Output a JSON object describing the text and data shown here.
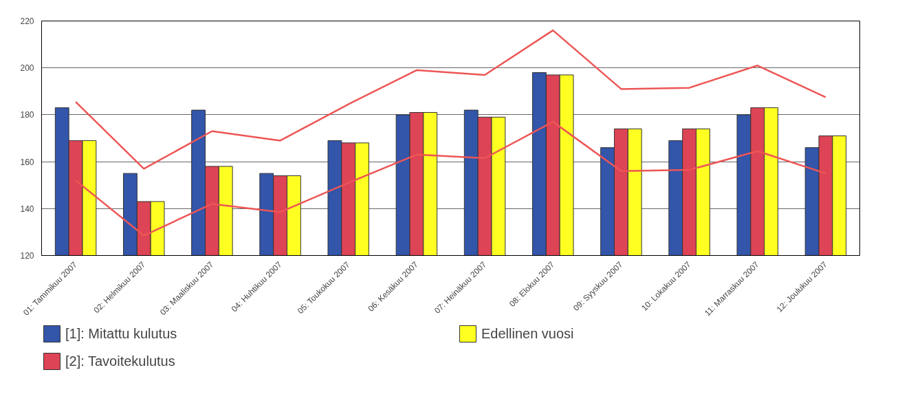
{
  "chart_data": {
    "type": "bar",
    "categories": [
      "01: Tammikuu 2007",
      "02: Helmikuu 2007",
      "03: Maaliskuu 2007",
      "04: Huhtikuu 2007",
      "05: Toukokuu 2007",
      "06: Kesäkuu 2007",
      "07: Heinäkuu 2007",
      "08: Elokuu 2007",
      "09: Syyskuu 2007",
      "10: Lokakuu 2007",
      "11: Marraskuu 2007",
      "12: Joulukuu 2007"
    ],
    "series": [
      {
        "name": "[1]: Mitattu kulutus",
        "color": "#3355aa",
        "values": [
          183,
          155,
          182,
          155,
          169,
          180,
          182,
          198,
          166,
          169,
          180,
          166
        ]
      },
      {
        "name": "[2]: Tavoitekulutus",
        "color": "#dd4455",
        "values": [
          169,
          143,
          158,
          154,
          168,
          181,
          179,
          197,
          174,
          174,
          183,
          171
        ]
      },
      {
        "name": "Edellinen vuosi",
        "color": "#ffff22",
        "values": [
          169,
          143,
          158,
          154,
          168,
          181,
          179,
          197,
          174,
          174,
          183,
          171
        ]
      },
      {
        "type": "line",
        "color": "#ee5555",
        "values": [
          185.5,
          157,
          173,
          169,
          184.5,
          199,
          197,
          216,
          191,
          191.5,
          201,
          187.5
        ]
      },
      {
        "type": "line",
        "color": "#ee5555",
        "values": [
          152,
          128.5,
          142,
          138.5,
          151,
          163,
          161.5,
          177,
          156,
          156.5,
          164.5,
          155
        ]
      }
    ],
    "ylim": [
      120,
      220
    ],
    "yticks": [
      120,
      140,
      160,
      180,
      200,
      220
    ],
    "grid": "y",
    "legend": "bottom"
  }
}
